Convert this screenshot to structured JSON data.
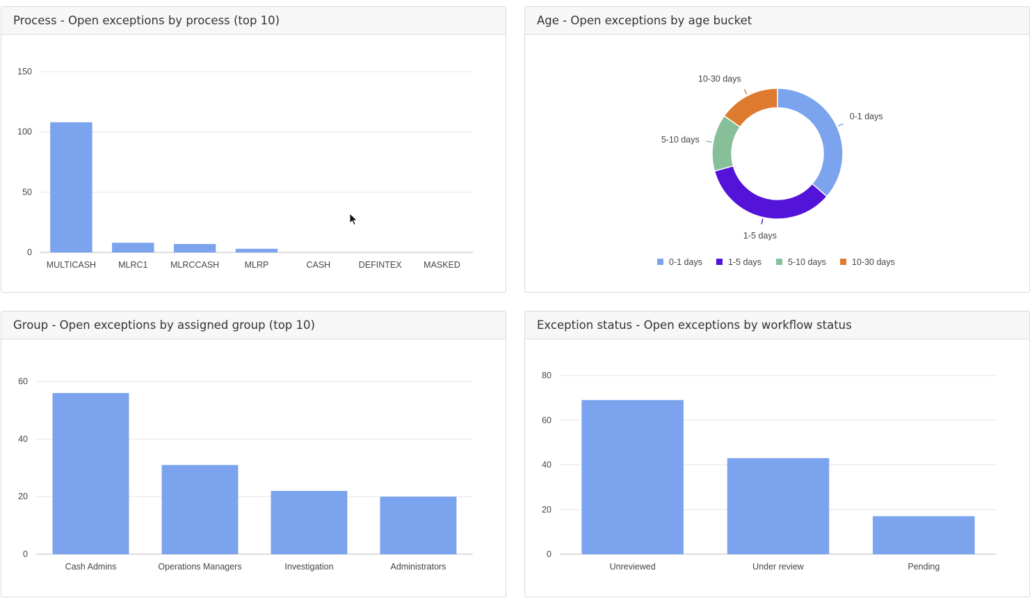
{
  "colors": {
    "bar": "#7ba3ee",
    "grid": "#e6e6e6",
    "axis": "#bdbdbd",
    "label": "#444444",
    "age_0_1": "#7ba3ee",
    "age_1_5": "#5313d9",
    "age_5_10": "#86bf98",
    "age_10_30": "#de7b2f"
  },
  "chart_data": [
    {
      "type": "bar",
      "title": "Process - Open exceptions by process (top 10)",
      "categories": [
        "MULTICASH",
        "MLRC1",
        "MLRCCASH",
        "MLRP",
        "CASH",
        "DEFINTEX",
        "MASKED"
      ],
      "values": [
        108,
        8,
        7,
        3,
        0,
        0,
        0
      ],
      "yticks": [
        0,
        50,
        100,
        150
      ],
      "ylim": [
        0,
        150
      ],
      "grid": true
    },
    {
      "type": "pie",
      "donut": true,
      "title": "Age - Open exceptions by age bucket",
      "categories": [
        "0-1 days",
        "1-5 days",
        "5-10 days",
        "10-30 days"
      ],
      "values": [
        36,
        34,
        14,
        15
      ],
      "legend": "bottom"
    },
    {
      "type": "bar",
      "title": "Group - Open exceptions by assigned group (top 10)",
      "categories": [
        "Cash Admins",
        "Operations Managers",
        "Investigation",
        "Administrators"
      ],
      "values": [
        56,
        31,
        22,
        20
      ],
      "yticks": [
        0,
        20,
        40,
        60
      ],
      "ylim": [
        0,
        65
      ],
      "grid": true
    },
    {
      "type": "bar",
      "title": "Exception status - Open exceptions by workflow status",
      "categories": [
        "Unreviewed",
        "Under review",
        "Pending"
      ],
      "values": [
        69,
        43,
        17
      ],
      "yticks": [
        0,
        20,
        40,
        60,
        80
      ],
      "ylim": [
        0,
        80
      ],
      "grid": true
    }
  ]
}
